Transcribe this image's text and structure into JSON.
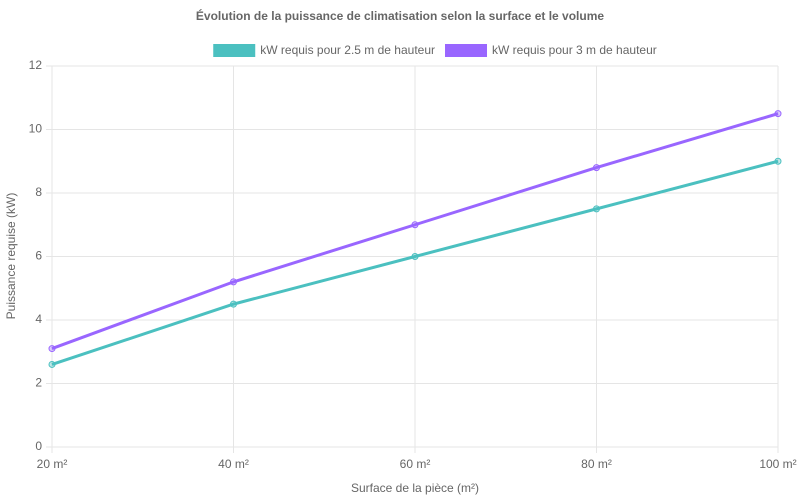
{
  "chart_data": {
    "type": "line",
    "title": "Évolution de la puissance de climatisation selon la surface et le volume",
    "x_label": "Surface de la pièce (m²)",
    "y_label": "Puissance requise (kW)",
    "categories": [
      "20 m²",
      "40 m²",
      "60 m²",
      "80 m²",
      "100 m²"
    ],
    "series": [
      {
        "name": "kW requis pour 2.5 m de hauteur",
        "color": "#4bc0c0",
        "values": [
          2.6,
          4.5,
          6,
          7.5,
          9
        ]
      },
      {
        "name": "kW requis pour 3 m de hauteur",
        "color": "#9966ff",
        "values": [
          3.1,
          5.2,
          7,
          8.8,
          10.5
        ]
      }
    ],
    "ylim": [
      0,
      12
    ],
    "yticks": [
      0,
      2,
      4,
      6,
      8,
      10,
      12
    ],
    "grid": true,
    "legend": "top"
  }
}
